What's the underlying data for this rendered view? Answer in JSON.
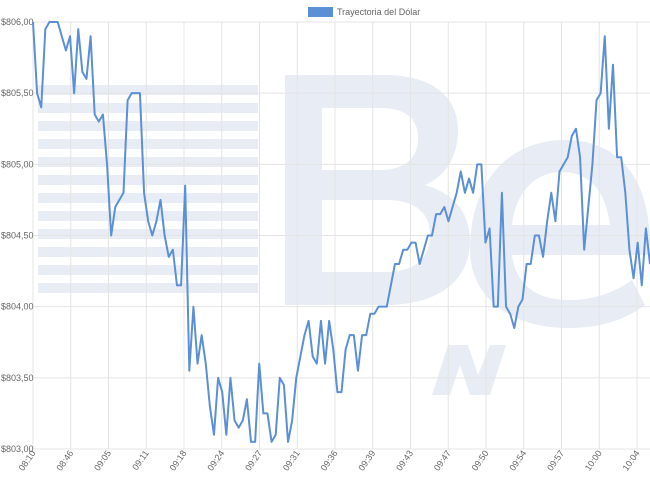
{
  "chart_data": {
    "type": "line",
    "title": "",
    "xlabel": "",
    "ylabel": "",
    "legend": {
      "position": "top",
      "label": "Trayectoria del Dólar"
    },
    "grid": true,
    "ylim": [
      803.0,
      806.0
    ],
    "y_ticks": [
      "$806,00",
      "$805,50",
      "$805,00",
      "$804,50",
      "$804,00",
      "$803,50",
      "$803,00"
    ],
    "x_ticks": [
      "08:10",
      "08:46",
      "09:05",
      "09:11",
      "09:18",
      "09:24",
      "09:27",
      "09:31",
      "09:36",
      "09:39",
      "09:43",
      "09:47",
      "09:50",
      "09:54",
      "09:57",
      "10:00",
      "10:04"
    ],
    "series": [
      {
        "name": "Trayectoria del Dólar",
        "color": "#5b8fd6",
        "values": [
          806.0,
          805.5,
          805.4,
          805.95,
          806.0,
          806.0,
          806.0,
          805.9,
          805.8,
          805.9,
          805.5,
          805.95,
          805.65,
          805.6,
          805.9,
          805.35,
          805.3,
          805.35,
          805.0,
          804.5,
          804.7,
          804.75,
          804.8,
          805.45,
          805.5,
          805.5,
          805.5,
          804.8,
          804.6,
          804.5,
          804.6,
          804.75,
          804.5,
          804.35,
          804.4,
          804.15,
          804.15,
          804.85,
          803.55,
          804.0,
          803.6,
          803.8,
          803.6,
          803.3,
          803.1,
          803.5,
          803.4,
          803.1,
          803.5,
          803.2,
          803.15,
          803.2,
          803.35,
          803.05,
          803.05,
          803.6,
          803.25,
          803.25,
          803.05,
          803.1,
          803.5,
          803.45,
          803.05,
          803.2,
          803.5,
          803.65,
          803.8,
          803.9,
          803.65,
          803.6,
          803.9,
          803.6,
          803.9,
          803.7,
          803.4,
          803.4,
          803.7,
          803.8,
          803.8,
          803.55,
          803.8,
          803.8,
          803.95,
          803.95,
          804.0,
          804.0,
          804.0,
          804.15,
          804.3,
          804.3,
          804.4,
          804.4,
          804.45,
          804.45,
          804.3,
          804.4,
          804.5,
          804.5,
          804.65,
          804.65,
          804.7,
          804.6,
          804.7,
          804.8,
          804.95,
          804.8,
          804.9,
          804.8,
          805.0,
          805.0,
          804.45,
          804.55,
          804.0,
          804.0,
          804.8,
          804.0,
          803.95,
          803.85,
          804.0,
          804.05,
          804.3,
          804.3,
          804.5,
          804.5,
          804.35,
          804.6,
          804.8,
          804.6,
          804.95,
          805.0,
          805.05,
          805.2,
          805.25,
          805.05,
          804.4,
          804.7,
          805.0,
          805.45,
          805.5,
          805.9,
          805.25,
          805.7,
          805.05,
          805.05,
          804.8,
          804.4,
          804.2,
          804.45,
          804.15,
          804.55,
          804.3
        ]
      }
    ]
  }
}
